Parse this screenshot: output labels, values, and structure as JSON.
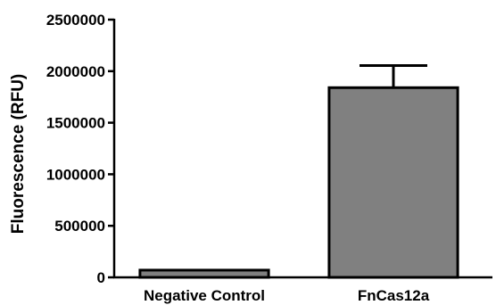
{
  "chart_data": {
    "type": "bar",
    "title": "",
    "xlabel": "",
    "ylabel": "Fluorescence (RFU)",
    "categories": [
      "Negative Control",
      "FnCas12a"
    ],
    "values": [
      70000,
      1840000
    ],
    "errors": [
      0,
      215000
    ],
    "ylim": [
      0,
      2500000
    ],
    "yticks": [
      "0",
      "500000",
      "1000000",
      "1500000",
      "2000000",
      "2500000"
    ],
    "ytick_values": [
      0,
      500000,
      1000000,
      1500000,
      2000000,
      2500000
    ],
    "grid": false,
    "bar_color": "#808080",
    "edge_color": "#000000"
  }
}
